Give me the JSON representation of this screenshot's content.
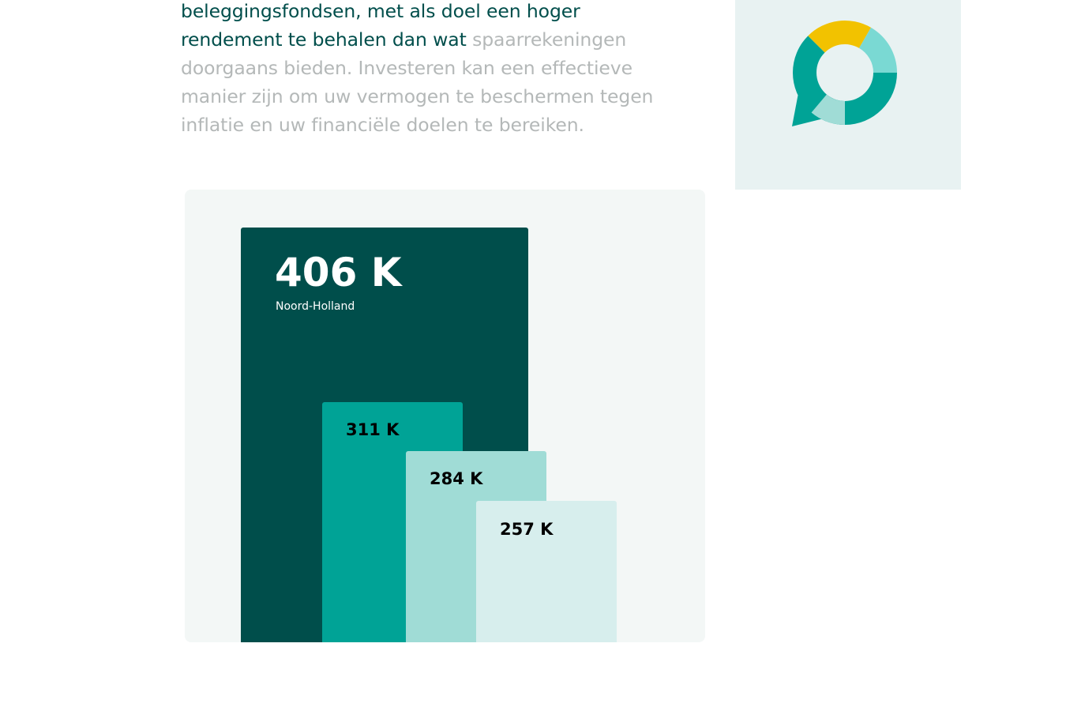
{
  "intro": {
    "highlighted": "beleggingsfondsen, met als doel een hoger rendement te behalen dan wat",
    "muted": "spaarrekeningen doorgaans bieden. Investeren kan een effectieve manier zijn om uw vermogen te beschermen tegen inflatie en uw financiële doelen te bereiken."
  },
  "colors": {
    "text_dark": "#004e4b",
    "text_muted": "#b4b8b8",
    "panel_bg": "#f3f7f6",
    "logo_panel_bg": "#e8f2f2"
  },
  "logo": {
    "icon": "chat-donut-logo",
    "colors": [
      "#00a396",
      "#f2c200",
      "#7ad9d3",
      "#a0dcd6"
    ]
  },
  "chart_data": {
    "type": "bar",
    "layout": "overlapping-stepped",
    "unit": "K",
    "bars": [
      {
        "label": "Noord-Holland",
        "value": 406,
        "value_label": "406 K",
        "color": "#004e4b",
        "text_color": "#ffffff"
      },
      {
        "label": "",
        "value": 311,
        "value_label": "311 K",
        "color": "#00a396",
        "text_color": "#000000"
      },
      {
        "label": "",
        "value": 284,
        "value_label": "284 K",
        "color": "#a0dcd6",
        "text_color": "#000000"
      },
      {
        "label": "",
        "value": 257,
        "value_label": "257 K",
        "color": "#d7eeed",
        "text_color": "#000000"
      }
    ]
  }
}
